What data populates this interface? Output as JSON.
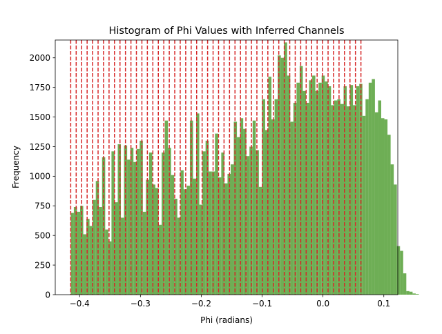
{
  "chart_data": {
    "type": "bar",
    "title": "Histogram of Phi Values with Inferred Channels",
    "xlabel": "Phi (radians)",
    "ylabel": "Frequency",
    "xlim": [
      -0.44,
      0.123
    ],
    "ylim": [
      0,
      2150
    ],
    "xticks": [
      -0.4,
      -0.3,
      -0.2,
      -0.1,
      0.0,
      0.1
    ],
    "xtick_labels": [
      "−0.4",
      "−0.3",
      "−0.2",
      "−0.1",
      "0.0",
      "0.1"
    ],
    "yticks": [
      0,
      250,
      500,
      750,
      1000,
      1250,
      1500,
      1750,
      2000
    ],
    "ytick_labels": [
      "0",
      "250",
      "500",
      "750",
      "1000",
      "1250",
      "1500",
      "1750",
      "2000"
    ],
    "grid": false,
    "bar_color": "#4a9a2a",
    "bar_alpha": 0.8,
    "bin_start": -0.4146,
    "bin_width": 0.005155,
    "counts": [
      690,
      740,
      700,
      750,
      510,
      640,
      580,
      800,
      960,
      740,
      1160,
      550,
      450,
      1210,
      780,
      1270,
      650,
      1260,
      1140,
      1240,
      1120,
      1230,
      1300,
      700,
      970,
      1200,
      930,
      900,
      590,
      1200,
      1470,
      1240,
      1010,
      810,
      650,
      1050,
      890,
      920,
      1470,
      980,
      1530,
      760,
      1210,
      1300,
      1040,
      1040,
      1360,
      990,
      1200,
      940,
      1020,
      1100,
      1460,
      1330,
      1490,
      1400,
      1170,
      1250,
      1470,
      1220,
      910,
      1650,
      1390,
      1840,
      1480,
      1650,
      2020,
      2000,
      2130,
      1850,
      1460,
      1620,
      1790,
      1930,
      1720,
      1620,
      1810,
      1850,
      1720,
      1790,
      1850,
      1800,
      1760,
      1600,
      1640,
      1650,
      1610,
      1760,
      1590,
      1770,
      1600,
      1760,
      1780,
      1510,
      1650,
      1790,
      1820,
      1540,
      1640,
      1490,
      1480,
      1350,
      1100,
      930,
      410,
      370,
      180,
      30,
      25,
      10,
      5
    ],
    "series": [
      {
        "type": "vlines",
        "color": "#d62728",
        "linestyle": "dashed",
        "x": [
          -0.4146,
          -0.4056,
          -0.3966,
          -0.3876,
          -0.3786,
          -0.3696,
          -0.3606,
          -0.3516,
          -0.3426,
          -0.3336,
          -0.3246,
          -0.3156,
          -0.3066,
          -0.2976,
          -0.2886,
          -0.2796,
          -0.2706,
          -0.2616,
          -0.2526,
          -0.2436,
          -0.2346,
          -0.2256,
          -0.2166,
          -0.2076,
          -0.1986,
          -0.1896,
          -0.1806,
          -0.1716,
          -0.1626,
          -0.1536,
          -0.1446,
          -0.1356,
          -0.1266,
          -0.1176,
          -0.1086,
          -0.0996,
          -0.0906,
          -0.0816,
          -0.0726,
          -0.0636,
          -0.0546,
          -0.0456,
          -0.0366,
          -0.0276,
          -0.0186,
          -0.0096,
          -0.0006,
          0.0084,
          0.0174,
          0.0264,
          0.0354,
          0.0444,
          0.0534,
          0.0624
        ]
      }
    ]
  }
}
